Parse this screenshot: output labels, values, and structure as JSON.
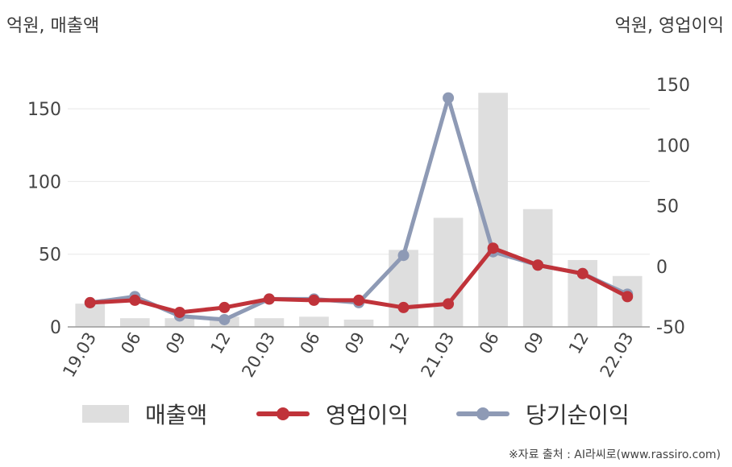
{
  "header": {
    "left_unit": "억원, 매출액",
    "right_unit": "억원, 영업이익"
  },
  "source": "※자료 출처 : AI라씨로(www.rassiro.com)",
  "colors": {
    "bar": "#dedede",
    "operating_profit": "#c0333a",
    "net_income": "#8e9ab5",
    "grid": "#e8e8e8",
    "axis": "#999999"
  },
  "chart_data": {
    "type": "bar",
    "categories": [
      "19.03",
      "06",
      "09",
      "12",
      "20.03",
      "06",
      "09",
      "12",
      "21.03",
      "06",
      "09",
      "12",
      "22.03"
    ],
    "y_left": {
      "label": "억원, 매출액",
      "ylim": [
        0,
        175
      ],
      "ticks": [
        0,
        50,
        100,
        150
      ]
    },
    "y_right": {
      "label": "억원, 영업이익",
      "ylim": [
        -50,
        160
      ],
      "ticks": [
        -50,
        0,
        50,
        100,
        150
      ]
    },
    "grid": true,
    "legend_position": "bottom",
    "series": [
      {
        "name": "매출액",
        "type": "bar",
        "axis": "left",
        "color": "#dedede",
        "values": [
          16,
          6,
          6,
          7,
          6,
          7,
          5,
          53,
          75,
          161,
          81,
          46,
          35
        ]
      },
      {
        "name": "영업이익",
        "type": "line",
        "axis": "right",
        "color": "#c0333a",
        "values": [
          -30,
          -28,
          -38,
          -34,
          -27,
          -28,
          -28,
          -34,
          -31,
          15,
          1,
          -6,
          -25
        ]
      },
      {
        "name": "당기순이익",
        "type": "line",
        "axis": "right",
        "color": "#8e9ab5",
        "values": [
          -30,
          -25,
          -41,
          -44,
          -27,
          -27,
          -30,
          9,
          139,
          12,
          1,
          -6,
          -23
        ]
      }
    ]
  }
}
